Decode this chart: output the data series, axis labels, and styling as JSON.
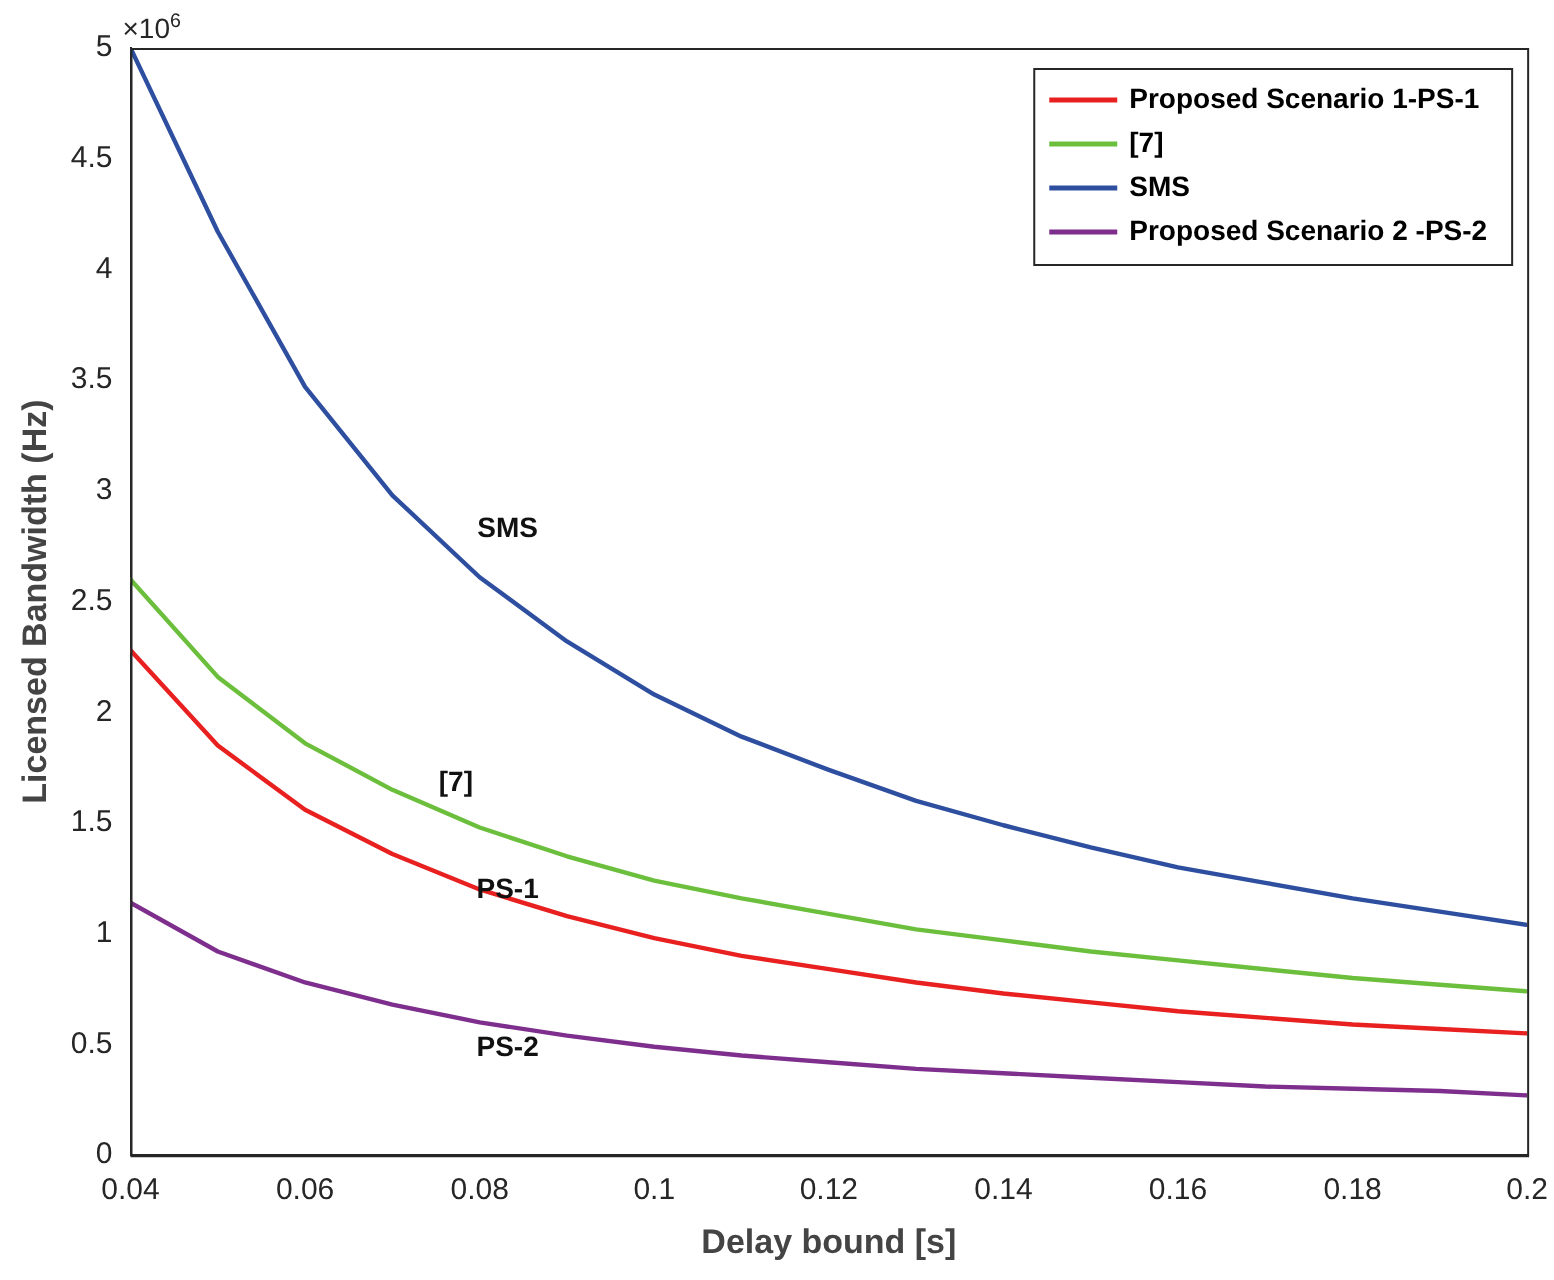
{
  "chart_data": {
    "type": "line",
    "xlabel": "Delay bound [s]",
    "ylabel": "Licensed Bandwidth (Hz)",
    "x": [
      0.04,
      0.05,
      0.06,
      0.07,
      0.08,
      0.09,
      0.1,
      0.11,
      0.12,
      0.13,
      0.14,
      0.15,
      0.16,
      0.17,
      0.18,
      0.19,
      0.2
    ],
    "series": [
      {
        "name": "Proposed Scenario 1-PS-1",
        "color": "#e8201f",
        "values": [
          2.28,
          1.85,
          1.56,
          1.36,
          1.2,
          1.08,
          0.98,
          0.9,
          0.84,
          0.78,
          0.73,
          0.69,
          0.65,
          0.62,
          0.59,
          0.57,
          0.55
        ]
      },
      {
        "name": "[7]",
        "color": "#6cbf3c",
        "values": [
          2.6,
          2.16,
          1.86,
          1.65,
          1.48,
          1.35,
          1.24,
          1.16,
          1.09,
          1.02,
          0.97,
          0.92,
          0.88,
          0.84,
          0.8,
          0.77,
          0.74
        ]
      },
      {
        "name": "SMS",
        "color": "#2e4fa0",
        "values": [
          5.0,
          4.17,
          3.47,
          2.98,
          2.61,
          2.32,
          2.08,
          1.89,
          1.74,
          1.6,
          1.49,
          1.39,
          1.3,
          1.23,
          1.16,
          1.1,
          1.04
        ]
      },
      {
        "name": "Proposed Scenario 2 -PS-2",
        "color": "#7e2f8e",
        "values": [
          1.14,
          0.92,
          0.78,
          0.68,
          0.6,
          0.54,
          0.49,
          0.45,
          0.42,
          0.39,
          0.37,
          0.35,
          0.33,
          0.31,
          0.3,
          0.29,
          0.27
        ]
      }
    ],
    "xlim": [
      0.04,
      0.2
    ],
    "xticks": [
      0.04,
      0.06,
      0.08,
      0.1,
      0.12,
      0.14,
      0.16,
      0.18,
      0.2
    ],
    "ylim": [
      0,
      5
    ],
    "yticks": [
      0,
      0.5,
      1,
      1.5,
      2,
      2.5,
      3,
      3.5,
      4,
      4.5,
      5
    ],
    "annotations": [
      "×10$^{6}$",
      "SMS",
      "[7]",
      "PS-1",
      "PS-2"
    ],
    "grid": false,
    "legend": "top right",
    "marker": "none",
    "line_style": "solid"
  }
}
